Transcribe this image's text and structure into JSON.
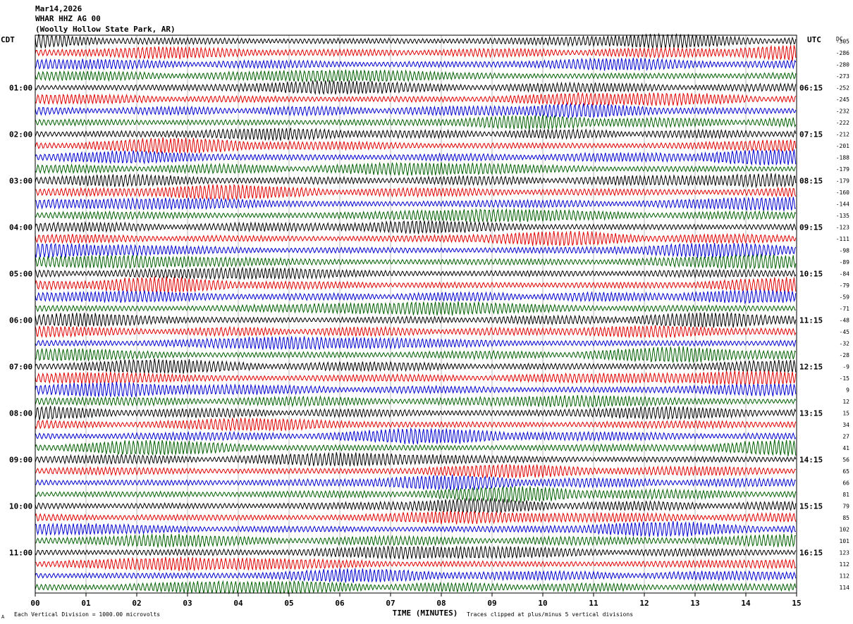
{
  "header": {
    "date": "Mar14,2026",
    "station": "WHAR HHZ AG 00",
    "location": "(Woolly Hollow State Park, AR)"
  },
  "left_tz": "CDT",
  "right_tz": "UTC",
  "dc_label": "DC",
  "footer": {
    "scale_note": "Each Vertical Division = 1000.00 microvolts",
    "clip_note": "Traces clipped at plus/minus 5 vertical divisions",
    "corner_mark": "A"
  },
  "colors": {
    "trace_cycle": [
      "#000000",
      "#e00000",
      "#0000d0",
      "#006000"
    ],
    "grid": "#909090",
    "frame": "#000000"
  },
  "chart_data": {
    "type": "line",
    "xlabel": "TIME (MINUTES)",
    "xlim": [
      0,
      15
    ],
    "x_ticks": [
      "00",
      "01",
      "02",
      "03",
      "04",
      "05",
      "06",
      "07",
      "08",
      "09",
      "10",
      "11",
      "12",
      "13",
      "14",
      "15"
    ],
    "rows": 48,
    "left_hour_labels": [
      {
        "row": 4,
        "label": "01:00"
      },
      {
        "row": 8,
        "label": "02:00"
      },
      {
        "row": 12,
        "label": "03:00"
      },
      {
        "row": 16,
        "label": "04:00"
      },
      {
        "row": 20,
        "label": "05:00"
      },
      {
        "row": 24,
        "label": "06:00"
      },
      {
        "row": 28,
        "label": "07:00"
      },
      {
        "row": 32,
        "label": "08:00"
      },
      {
        "row": 36,
        "label": "09:00"
      },
      {
        "row": 40,
        "label": "10:00"
      },
      {
        "row": 44,
        "label": "11:00"
      }
    ],
    "right_hour_labels": [
      {
        "row": 4,
        "label": "06:15"
      },
      {
        "row": 8,
        "label": "07:15"
      },
      {
        "row": 12,
        "label": "08:15"
      },
      {
        "row": 16,
        "label": "09:15"
      },
      {
        "row": 20,
        "label": "10:15"
      },
      {
        "row": 24,
        "label": "11:15"
      },
      {
        "row": 28,
        "label": "12:15"
      },
      {
        "row": 32,
        "label": "13:15"
      },
      {
        "row": 36,
        "label": "14:15"
      },
      {
        "row": 40,
        "label": "15:15"
      },
      {
        "row": 44,
        "label": "16:15"
      }
    ],
    "dc_offsets": [
      "-305",
      "-286",
      "-280",
      "-273",
      "-252",
      "-245",
      "-232",
      "-222",
      "-212",
      "-201",
      "-188",
      "-179",
      "-179",
      "-160",
      "-144",
      "-135",
      "-123",
      "-111",
      "-98",
      "-89",
      "-84",
      "-79",
      "-59",
      "-71",
      "-48",
      "-45",
      "-32",
      "-28",
      "-9",
      "-15",
      "9",
      "12",
      "15",
      "34",
      "27",
      "41",
      "56",
      "65",
      "66",
      "81",
      "79",
      "85",
      "102",
      "101",
      "123",
      "112",
      "112",
      "114"
    ]
  }
}
